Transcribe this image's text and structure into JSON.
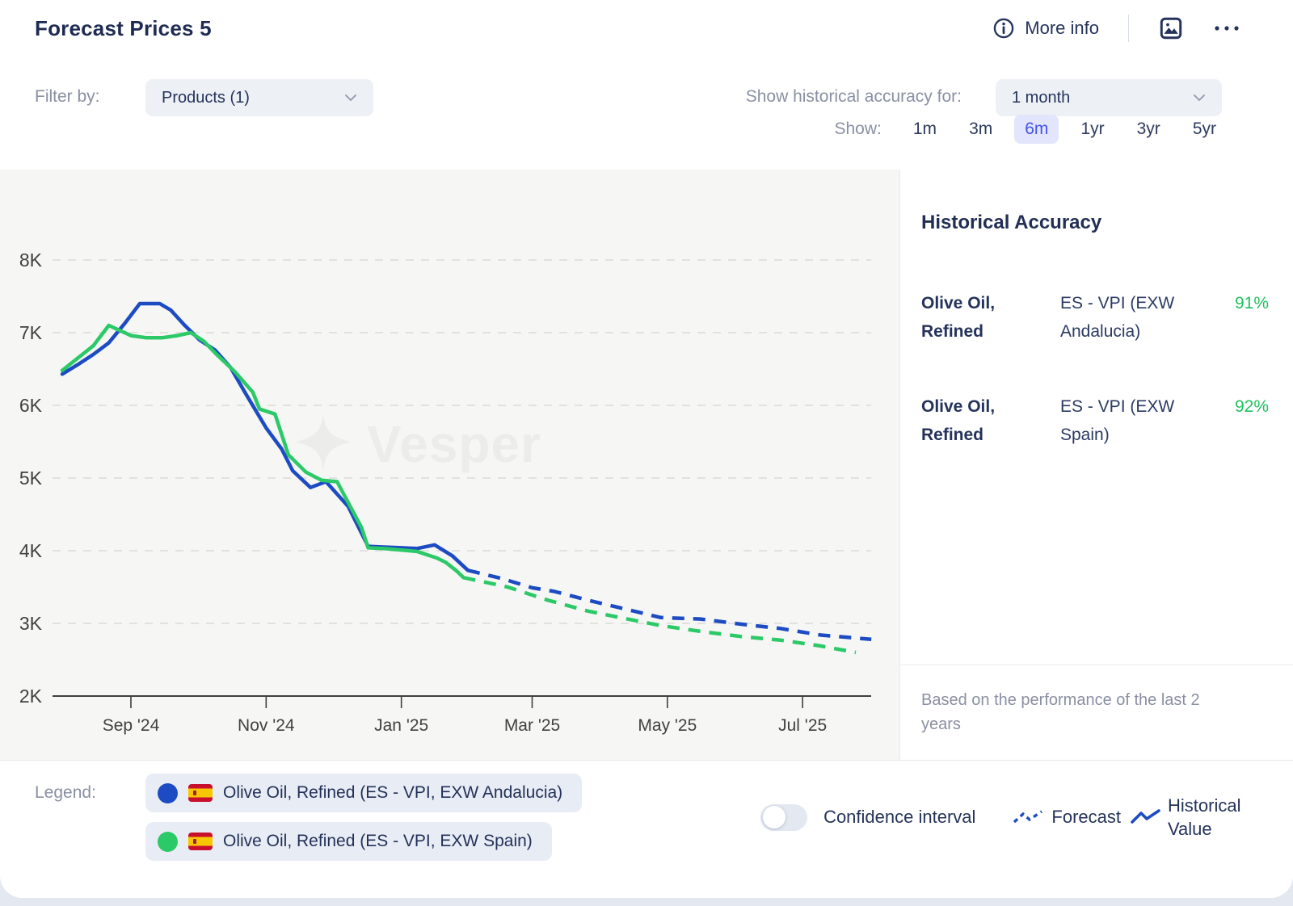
{
  "header": {
    "title": "Forecast Prices 5",
    "more_info_label": "More info"
  },
  "filters": {
    "filter_by_label": "Filter by:",
    "products_dropdown_value": "Products (1)",
    "accuracy_for_label": "Show historical accuracy for:",
    "accuracy_period_value": "1 month",
    "show_label": "Show:",
    "ranges": [
      "1m",
      "3m",
      "6m",
      "1yr",
      "3yr",
      "5yr"
    ],
    "selected_range": "6m"
  },
  "accuracy_panel": {
    "title": "Historical Accuracy",
    "rows": [
      {
        "product": "Olive Oil, Refined",
        "index": "ES - VPI (EXW Andalucia)",
        "accuracy": "91%"
      },
      {
        "product": "Olive Oil, Refined",
        "index": "ES - VPI (EXW Spain)",
        "accuracy": "92%"
      }
    ],
    "footnote": "Based on the performance of the last 2 years"
  },
  "legend": {
    "label": "Legend:",
    "items": [
      {
        "name": "Olive Oil, Refined (ES - VPI, EXW Andalucia)"
      },
      {
        "name": "Olive Oil, Refined (ES - VPI, EXW Spain)"
      }
    ],
    "confidence_label": "Confidence interval",
    "confidence_state": "off",
    "forecast_label": "Forecast",
    "historical_label": "Historical Value"
  },
  "watermark": "Vesper",
  "chart_data": {
    "type": "line",
    "title": "Forecast Prices 5",
    "ylabel": "",
    "ylim": [
      2000,
      8000
    ],
    "grid": "dashed horizontal",
    "y_axis": {
      "ticks": [
        {
          "value": 8000,
          "label": "8K"
        },
        {
          "value": 7000,
          "label": "7K"
        },
        {
          "value": 6000,
          "label": "6K"
        },
        {
          "value": 5000,
          "label": "5K"
        },
        {
          "value": 4000,
          "label": "4K"
        },
        {
          "value": 3000,
          "label": "3K"
        },
        {
          "value": 2000,
          "label": "2K"
        }
      ]
    },
    "x_ticks": [
      {
        "date": "2024-09-01",
        "label": "Sep '24"
      },
      {
        "date": "2024-11-01",
        "label": "Nov '24"
      },
      {
        "date": "2025-01-01",
        "label": "Jan '25"
      },
      {
        "date": "2025-03-01",
        "label": "Mar '25"
      },
      {
        "date": "2025-05-01",
        "label": "May '25"
      },
      {
        "date": "2025-07-01",
        "label": "Jul '25"
      }
    ],
    "series": [
      {
        "name": "Olive Oil, Refined (ES - VPI, EXW Andalucia)",
        "color": "#1c4bc3",
        "historical": [
          [
            "2024-08-01",
            6430
          ],
          [
            "2024-08-08",
            6560
          ],
          [
            "2024-08-15",
            6700
          ],
          [
            "2024-08-22",
            6860
          ],
          [
            "2024-08-29",
            7120
          ],
          [
            "2024-09-05",
            7400
          ],
          [
            "2024-09-14",
            7400
          ],
          [
            "2024-09-19",
            7310
          ],
          [
            "2024-09-25",
            7110
          ],
          [
            "2024-10-02",
            6900
          ],
          [
            "2024-10-09",
            6760
          ],
          [
            "2024-10-16",
            6520
          ],
          [
            "2024-10-23",
            6150
          ],
          [
            "2024-11-01",
            5690
          ],
          [
            "2024-11-08",
            5400
          ],
          [
            "2024-11-13",
            5100
          ],
          [
            "2024-11-21",
            4870
          ],
          [
            "2024-11-28",
            4950
          ],
          [
            "2024-12-08",
            4610
          ],
          [
            "2024-12-17",
            4060
          ],
          [
            "2024-12-24",
            4050
          ],
          [
            "2025-01-01",
            4040
          ],
          [
            "2025-01-08",
            4030
          ],
          [
            "2025-01-16",
            4080
          ],
          [
            "2025-01-24",
            3930
          ],
          [
            "2025-01-31",
            3730
          ]
        ],
        "forecast": [
          [
            "2025-01-31",
            3730
          ],
          [
            "2025-02-15",
            3620
          ],
          [
            "2025-03-01",
            3490
          ],
          [
            "2025-03-11",
            3440
          ],
          [
            "2025-03-26",
            3320
          ],
          [
            "2025-04-13",
            3190
          ],
          [
            "2025-04-28",
            3080
          ],
          [
            "2025-05-16",
            3060
          ],
          [
            "2025-06-03",
            2990
          ],
          [
            "2025-06-21",
            2930
          ],
          [
            "2025-07-09",
            2840
          ],
          [
            "2025-08-01",
            2780
          ]
        ],
        "historical_accuracy": "91%"
      },
      {
        "name": "Olive Oil, Refined (ES - VPI, EXW Spain)",
        "color": "#2bc967",
        "historical": [
          [
            "2024-08-01",
            6480
          ],
          [
            "2024-08-08",
            6650
          ],
          [
            "2024-08-15",
            6820
          ],
          [
            "2024-08-22",
            7100
          ],
          [
            "2024-09-01",
            6960
          ],
          [
            "2024-09-08",
            6930
          ],
          [
            "2024-09-15",
            6930
          ],
          [
            "2024-09-22",
            6960
          ],
          [
            "2024-09-28",
            7000
          ],
          [
            "2024-10-04",
            6880
          ],
          [
            "2024-10-10",
            6690
          ],
          [
            "2024-10-18",
            6460
          ],
          [
            "2024-10-26",
            6180
          ],
          [
            "2024-10-29",
            5950
          ],
          [
            "2024-11-05",
            5880
          ],
          [
            "2024-11-11",
            5320
          ],
          [
            "2024-11-19",
            5080
          ],
          [
            "2024-11-26",
            4970
          ],
          [
            "2024-12-03",
            4950
          ],
          [
            "2024-12-14",
            4320
          ],
          [
            "2024-12-17",
            4040
          ],
          [
            "2024-12-24",
            4030
          ],
          [
            "2025-01-08",
            3990
          ],
          [
            "2025-01-17",
            3900
          ],
          [
            "2025-01-21",
            3840
          ],
          [
            "2025-01-26",
            3720
          ],
          [
            "2025-01-29",
            3630
          ]
        ],
        "forecast": [
          [
            "2025-01-29",
            3630
          ],
          [
            "2025-02-18",
            3500
          ],
          [
            "2025-03-08",
            3320
          ],
          [
            "2025-03-26",
            3170
          ],
          [
            "2025-04-13",
            3060
          ],
          [
            "2025-04-28",
            2970
          ],
          [
            "2025-05-16",
            2890
          ],
          [
            "2025-06-03",
            2820
          ],
          [
            "2025-06-21",
            2770
          ],
          [
            "2025-07-09",
            2690
          ],
          [
            "2025-07-25",
            2600
          ]
        ],
        "historical_accuracy": "92%"
      }
    ],
    "style_note": "solid = historical value, dashed = forecast"
  },
  "colors": {
    "accent_blue": "#1c4bc3",
    "accent_green": "#2bc967",
    "accuracy_green": "#1dc35f",
    "navy_text": "#25335b",
    "muted_text": "#8a90a3",
    "chart_bg": "#f6f6f4",
    "selected_range_bg": "#e2e5fb",
    "selected_range_text": "#4355e8"
  }
}
